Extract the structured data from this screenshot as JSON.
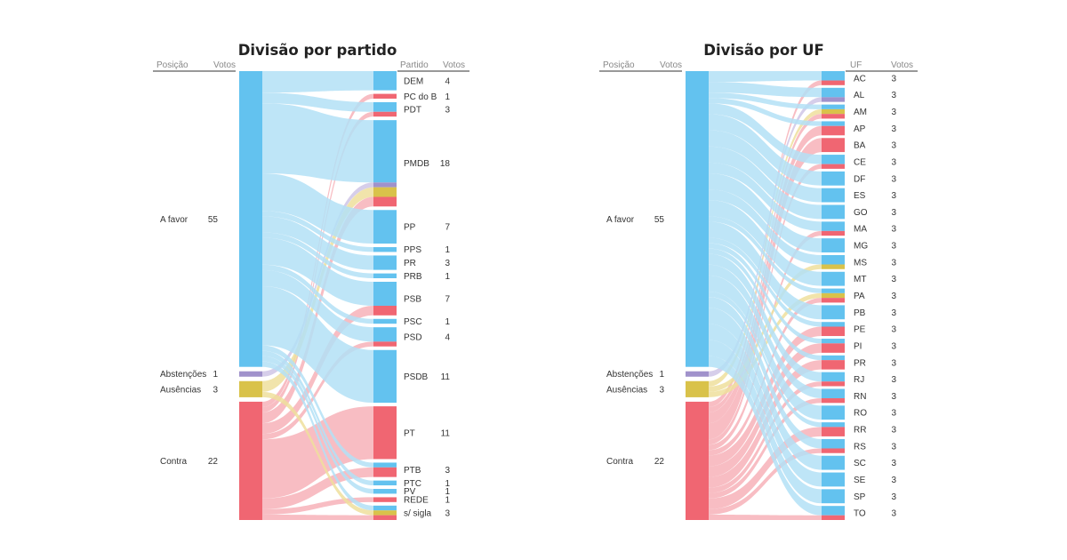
{
  "colors": {
    "favor": "#63c2ef",
    "abstencao": "#a092cb",
    "ausencia": "#d9c24a",
    "contra": "#f06672",
    "favor_flow": "#b3e0f6",
    "abstencao_flow": "#cfc6e6",
    "ausencia_flow": "#eedf9c",
    "contra_flow": "#f7b2b8"
  },
  "chart_data": [
    {
      "type": "sankey",
      "title": "Divisão por partido",
      "left_header": {
        "label": "Posição",
        "value": "Votos"
      },
      "right_header": {
        "label": "Partido",
        "value": "Votos"
      },
      "positions": [
        {
          "key": "favor",
          "label": "A favor",
          "votes": 55
        },
        {
          "key": "abstencao",
          "label": "Abstenções",
          "votes": 1
        },
        {
          "key": "ausencia",
          "label": "Ausências",
          "votes": 3
        },
        {
          "key": "contra",
          "label": "Contra",
          "votes": 22
        }
      ],
      "groups": [
        {
          "label": "DEM",
          "votes": 4,
          "favor": 4,
          "abstencao": 0,
          "ausencia": 0,
          "contra": 0
        },
        {
          "label": "PC do B",
          "votes": 1,
          "favor": 0,
          "abstencao": 0,
          "ausencia": 0,
          "contra": 1
        },
        {
          "label": "PDT",
          "votes": 3,
          "favor": 2,
          "abstencao": 0,
          "ausencia": 0,
          "contra": 1
        },
        {
          "label": "PMDB",
          "votes": 18,
          "favor": 13,
          "abstencao": 1,
          "ausencia": 2,
          "contra": 2
        },
        {
          "label": "PP",
          "votes": 7,
          "favor": 7,
          "abstencao": 0,
          "ausencia": 0,
          "contra": 0
        },
        {
          "label": "PPS",
          "votes": 1,
          "favor": 1,
          "abstencao": 0,
          "ausencia": 0,
          "contra": 0
        },
        {
          "label": "PR",
          "votes": 3,
          "favor": 3,
          "abstencao": 0,
          "ausencia": 0,
          "contra": 0
        },
        {
          "label": "PRB",
          "votes": 1,
          "favor": 1,
          "abstencao": 0,
          "ausencia": 0,
          "contra": 0
        },
        {
          "label": "PSB",
          "votes": 7,
          "favor": 5,
          "abstencao": 0,
          "ausencia": 0,
          "contra": 2
        },
        {
          "label": "PSC",
          "votes": 1,
          "favor": 1,
          "abstencao": 0,
          "ausencia": 0,
          "contra": 0
        },
        {
          "label": "PSD",
          "votes": 4,
          "favor": 3,
          "abstencao": 0,
          "ausencia": 0,
          "contra": 1
        },
        {
          "label": "PSDB",
          "votes": 11,
          "favor": 11,
          "abstencao": 0,
          "ausencia": 0,
          "contra": 0
        },
        {
          "label": "PT",
          "votes": 11,
          "favor": 0,
          "abstencao": 0,
          "ausencia": 0,
          "contra": 11
        },
        {
          "label": "PTB",
          "votes": 3,
          "favor": 1,
          "abstencao": 0,
          "ausencia": 0,
          "contra": 2
        },
        {
          "label": "PTC",
          "votes": 1,
          "favor": 1,
          "abstencao": 0,
          "ausencia": 0,
          "contra": 0
        },
        {
          "label": "PV",
          "votes": 1,
          "favor": 1,
          "abstencao": 0,
          "ausencia": 0,
          "contra": 0
        },
        {
          "label": "REDE",
          "votes": 1,
          "favor": 0,
          "abstencao": 0,
          "ausencia": 0,
          "contra": 1
        },
        {
          "label": "s/ sigla",
          "votes": 3,
          "favor": 1,
          "abstencao": 0,
          "ausencia": 1,
          "contra": 1
        }
      ]
    },
    {
      "type": "sankey",
      "title": "Divisão por UF",
      "left_header": {
        "label": "Posição",
        "value": "Votos"
      },
      "right_header": {
        "label": "UF",
        "value": "Votos"
      },
      "positions": [
        {
          "key": "favor",
          "label": "A favor",
          "votes": 55
        },
        {
          "key": "abstencao",
          "label": "Abstenções",
          "votes": 1
        },
        {
          "key": "ausencia",
          "label": "Ausências",
          "votes": 3
        },
        {
          "key": "contra",
          "label": "Contra",
          "votes": 22
        }
      ],
      "groups": [
        {
          "label": "AC",
          "votes": 3,
          "favor": 2,
          "abstencao": 0,
          "ausencia": 0,
          "contra": 1
        },
        {
          "label": "AL",
          "votes": 3,
          "favor": 2,
          "abstencao": 1,
          "ausencia": 0,
          "contra": 0
        },
        {
          "label": "AM",
          "votes": 3,
          "favor": 1,
          "abstencao": 0,
          "ausencia": 1,
          "contra": 1
        },
        {
          "label": "AP",
          "votes": 3,
          "favor": 1,
          "abstencao": 0,
          "ausencia": 0,
          "contra": 2
        },
        {
          "label": "BA",
          "votes": 3,
          "favor": 0,
          "abstencao": 0,
          "ausencia": 0,
          "contra": 3
        },
        {
          "label": "CE",
          "votes": 3,
          "favor": 2,
          "abstencao": 0,
          "ausencia": 0,
          "contra": 1
        },
        {
          "label": "DF",
          "votes": 3,
          "favor": 3,
          "abstencao": 0,
          "ausencia": 0,
          "contra": 0
        },
        {
          "label": "ES",
          "votes": 3,
          "favor": 3,
          "abstencao": 0,
          "ausencia": 0,
          "contra": 0
        },
        {
          "label": "GO",
          "votes": 3,
          "favor": 3,
          "abstencao": 0,
          "ausencia": 0,
          "contra": 0
        },
        {
          "label": "MA",
          "votes": 3,
          "favor": 2,
          "abstencao": 0,
          "ausencia": 0,
          "contra": 1
        },
        {
          "label": "MG",
          "votes": 3,
          "favor": 3,
          "abstencao": 0,
          "ausencia": 0,
          "contra": 0
        },
        {
          "label": "MS",
          "votes": 3,
          "favor": 2,
          "abstencao": 0,
          "ausencia": 1,
          "contra": 0
        },
        {
          "label": "MT",
          "votes": 3,
          "favor": 3,
          "abstencao": 0,
          "ausencia": 0,
          "contra": 0
        },
        {
          "label": "PA",
          "votes": 3,
          "favor": 1,
          "abstencao": 0,
          "ausencia": 1,
          "contra": 1
        },
        {
          "label": "PB",
          "votes": 3,
          "favor": 3,
          "abstencao": 0,
          "ausencia": 0,
          "contra": 0
        },
        {
          "label": "PE",
          "votes": 3,
          "favor": 1,
          "abstencao": 0,
          "ausencia": 0,
          "contra": 2
        },
        {
          "label": "PI",
          "votes": 3,
          "favor": 1,
          "abstencao": 0,
          "ausencia": 0,
          "contra": 2
        },
        {
          "label": "PR",
          "votes": 3,
          "favor": 1,
          "abstencao": 0,
          "ausencia": 0,
          "contra": 2
        },
        {
          "label": "RJ",
          "votes": 3,
          "favor": 2,
          "abstencao": 0,
          "ausencia": 0,
          "contra": 1
        },
        {
          "label": "RN",
          "votes": 3,
          "favor": 2,
          "abstencao": 0,
          "ausencia": 0,
          "contra": 1
        },
        {
          "label": "RO",
          "votes": 3,
          "favor": 3,
          "abstencao": 0,
          "ausencia": 0,
          "contra": 0
        },
        {
          "label": "RR",
          "votes": 3,
          "favor": 1,
          "abstencao": 0,
          "ausencia": 0,
          "contra": 2
        },
        {
          "label": "RS",
          "votes": 3,
          "favor": 2,
          "abstencao": 0,
          "ausencia": 0,
          "contra": 1
        },
        {
          "label": "SC",
          "votes": 3,
          "favor": 3,
          "abstencao": 0,
          "ausencia": 0,
          "contra": 0
        },
        {
          "label": "SE",
          "votes": 3,
          "favor": 3,
          "abstencao": 0,
          "ausencia": 0,
          "contra": 0
        },
        {
          "label": "SP",
          "votes": 3,
          "favor": 3,
          "abstencao": 0,
          "ausencia": 0,
          "contra": 0
        },
        {
          "label": "TO",
          "votes": 3,
          "favor": 2,
          "abstencao": 0,
          "ausencia": 0,
          "contra": 1
        }
      ]
    }
  ]
}
